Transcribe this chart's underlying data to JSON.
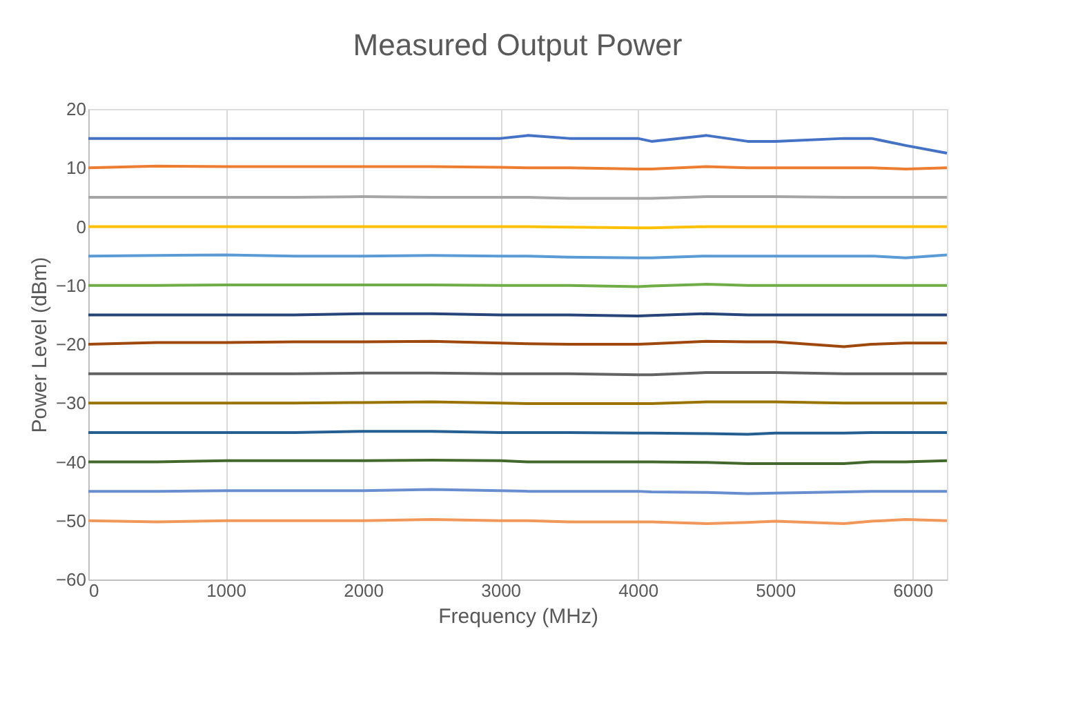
{
  "chart_data": {
    "type": "line",
    "title": "Measured Output Power",
    "xlabel": "Frequency (MHz)",
    "ylabel": "Power Level (dBm)",
    "x": [
      0,
      500,
      1000,
      1500,
      2000,
      2500,
      3000,
      3200,
      3500,
      4000,
      4100,
      4500,
      4800,
      5000,
      5500,
      5700,
      5950,
      6250
    ],
    "xlim": [
      0,
      6250
    ],
    "xticks": [
      0,
      1000,
      2000,
      3000,
      4000,
      5000,
      6000
    ],
    "ylim": [
      -60,
      20
    ],
    "yticks": [
      -60,
      -50,
      -40,
      -30,
      -20,
      -10,
      0,
      10,
      20
    ],
    "grid": "x",
    "line_style": "solid",
    "series": [
      {
        "color": "#4472c4",
        "values": [
          15,
          15,
          15,
          15,
          15,
          15,
          15,
          15.5,
          15,
          15,
          14.5,
          15.5,
          14.5,
          14.5,
          15,
          15,
          13.8,
          12.5
        ]
      },
      {
        "color": "#ed7d31",
        "values": [
          10,
          10.3,
          10.2,
          10.2,
          10.2,
          10.2,
          10.1,
          10,
          10,
          9.8,
          9.8,
          10.2,
          10,
          10,
          10,
          10,
          9.8,
          10
        ]
      },
      {
        "color": "#a5a5a5",
        "values": [
          5,
          5,
          5,
          5,
          5.1,
          5,
          5,
          5,
          4.8,
          4.8,
          4.8,
          5.1,
          5.1,
          5.1,
          5,
          5,
          5,
          5
        ]
      },
      {
        "color": "#ffc000",
        "values": [
          0,
          0,
          0,
          0,
          0,
          0,
          0,
          0,
          -0.1,
          -0.2,
          -0.2,
          0,
          0,
          0,
          0,
          0,
          0,
          0
        ]
      },
      {
        "color": "#5b9bd5",
        "values": [
          -5,
          -4.9,
          -4.8,
          -5,
          -5,
          -4.9,
          -5,
          -5,
          -5.2,
          -5.3,
          -5.3,
          -5,
          -5,
          -5,
          -5,
          -5,
          -5.3,
          -4.8
        ]
      },
      {
        "color": "#70ad47",
        "values": [
          -10,
          -10,
          -9.9,
          -9.9,
          -9.9,
          -9.9,
          -10,
          -10,
          -10,
          -10.2,
          -10.1,
          -9.8,
          -10,
          -10,
          -10,
          -10,
          -10,
          -10
        ]
      },
      {
        "color": "#264478",
        "values": [
          -15,
          -15,
          -15,
          -15,
          -14.8,
          -14.8,
          -15,
          -15,
          -15,
          -15.2,
          -15.1,
          -14.8,
          -15,
          -15,
          -15,
          -15,
          -15,
          -15
        ]
      },
      {
        "color": "#9e480e",
        "values": [
          -20,
          -19.7,
          -19.7,
          -19.6,
          -19.6,
          -19.5,
          -19.8,
          -19.9,
          -20,
          -20,
          -19.9,
          -19.5,
          -19.6,
          -19.6,
          -20.4,
          -20,
          -19.8,
          -19.8
        ]
      },
      {
        "color": "#636363",
        "values": [
          -25,
          -25,
          -25,
          -25,
          -24.9,
          -24.9,
          -25,
          -25,
          -25,
          -25.2,
          -25.2,
          -24.8,
          -24.8,
          -24.8,
          -25,
          -25,
          -25,
          -25
        ]
      },
      {
        "color": "#997300",
        "values": [
          -30,
          -30,
          -30,
          -30,
          -29.9,
          -29.8,
          -30,
          -30.1,
          -30.1,
          -30.1,
          -30.1,
          -29.8,
          -29.8,
          -29.8,
          -30,
          -30,
          -30,
          -30
        ]
      },
      {
        "color": "#255e91",
        "values": [
          -35,
          -35,
          -35,
          -35,
          -34.8,
          -34.8,
          -35,
          -35,
          -35,
          -35.1,
          -35.1,
          -35.2,
          -35.3,
          -35.1,
          -35.1,
          -35,
          -35,
          -35
        ]
      },
      {
        "color": "#43682b",
        "values": [
          -40,
          -40,
          -39.8,
          -39.8,
          -39.8,
          -39.7,
          -39.8,
          -40,
          -40,
          -40,
          -40,
          -40.1,
          -40.3,
          -40.3,
          -40.3,
          -40,
          -40,
          -39.8
        ]
      },
      {
        "color": "#698ed0",
        "values": [
          -45,
          -45,
          -44.9,
          -44.9,
          -44.9,
          -44.7,
          -44.9,
          -45,
          -45,
          -45,
          -45.1,
          -45.2,
          -45.4,
          -45.3,
          -45.1,
          -45,
          -45,
          -45
        ]
      },
      {
        "color": "#f1975a",
        "values": [
          -50,
          -50.2,
          -50,
          -50,
          -50,
          -49.8,
          -50,
          -50,
          -50.2,
          -50.2,
          -50.2,
          -50.5,
          -50.3,
          -50.1,
          -50.5,
          -50.1,
          -49.8,
          -50
        ]
      }
    ]
  }
}
